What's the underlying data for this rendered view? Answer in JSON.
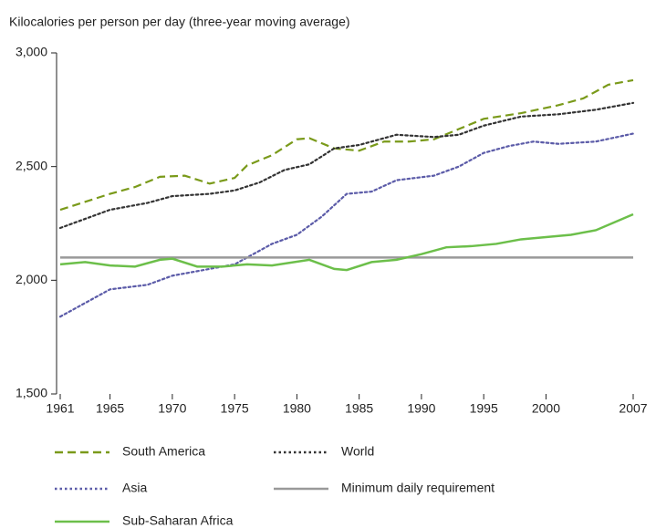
{
  "chart_data": {
    "type": "line",
    "title": "Kilocalories per person per day (three-year moving average)",
    "xlim": [
      1961,
      2007
    ],
    "xticks": [
      1961,
      1965,
      1970,
      1975,
      1980,
      1985,
      1990,
      1995,
      2000,
      2007
    ],
    "ylim": [
      1500,
      3000
    ],
    "yticks": [
      {
        "value": 1500,
        "label": "1,500"
      },
      {
        "value": 2000,
        "label": "2,000"
      },
      {
        "value": 2500,
        "label": "2,500"
      },
      {
        "value": 3000,
        "label": "3,000"
      }
    ],
    "series": [
      {
        "name": "South America",
        "color": "#7a9a1a",
        "dash": "dashed",
        "x": [
          1961,
          1963,
          1965,
          1967,
          1969,
          1971,
          1973,
          1975,
          1976,
          1978,
          1980,
          1981,
          1983,
          1985,
          1987,
          1989,
          1991,
          1993,
          1995,
          1998,
          2001,
          2003,
          2005,
          2007
        ],
        "values": [
          2310,
          2345,
          2380,
          2410,
          2455,
          2460,
          2425,
          2450,
          2505,
          2550,
          2620,
          2625,
          2580,
          2570,
          2610,
          2610,
          2620,
          2665,
          2710,
          2735,
          2770,
          2800,
          2860,
          2880
        ]
      },
      {
        "name": "World",
        "color": "#333333",
        "dash": "dotted",
        "x": [
          1961,
          1965,
          1968,
          1970,
          1973,
          1975,
          1977,
          1979,
          1981,
          1983,
          1985,
          1988,
          1991,
          1993,
          1995,
          1998,
          2001,
          2004,
          2007
        ],
        "values": [
          2230,
          2310,
          2340,
          2370,
          2380,
          2395,
          2430,
          2485,
          2510,
          2580,
          2595,
          2640,
          2630,
          2640,
          2680,
          2720,
          2730,
          2750,
          2780
        ]
      },
      {
        "name": "Asia",
        "color": "#5b5ba8",
        "dash": "dotted",
        "x": [
          1961,
          1963,
          1965,
          1968,
          1970,
          1973,
          1975,
          1978,
          1980,
          1982,
          1984,
          1986,
          1988,
          1991,
          1993,
          1995,
          1997,
          1999,
          2001,
          2004,
          2007
        ],
        "values": [
          1840,
          1900,
          1960,
          1980,
          2020,
          2050,
          2070,
          2160,
          2200,
          2280,
          2380,
          2390,
          2440,
          2460,
          2500,
          2560,
          2590,
          2610,
          2600,
          2610,
          2645
        ]
      },
      {
        "name": "Minimum daily requirement",
        "color": "#999999",
        "dash": "solid",
        "x": [
          1961,
          2007
        ],
        "values": [
          2100,
          2100
        ]
      },
      {
        "name": "Sub-Saharan Africa",
        "color": "#6cbf4a",
        "dash": "solid",
        "x": [
          1961,
          1963,
          1965,
          1967,
          1969,
          1970,
          1972,
          1974,
          1976,
          1978,
          1981,
          1983,
          1984,
          1986,
          1988,
          1990,
          1992,
          1994,
          1996,
          1998,
          2000,
          2002,
          2004,
          2007
        ],
        "values": [
          2070,
          2080,
          2065,
          2060,
          2090,
          2095,
          2060,
          2060,
          2070,
          2065,
          2090,
          2050,
          2045,
          2080,
          2090,
          2115,
          2145,
          2150,
          2160,
          2180,
          2190,
          2200,
          2220,
          2290
        ]
      }
    ]
  }
}
